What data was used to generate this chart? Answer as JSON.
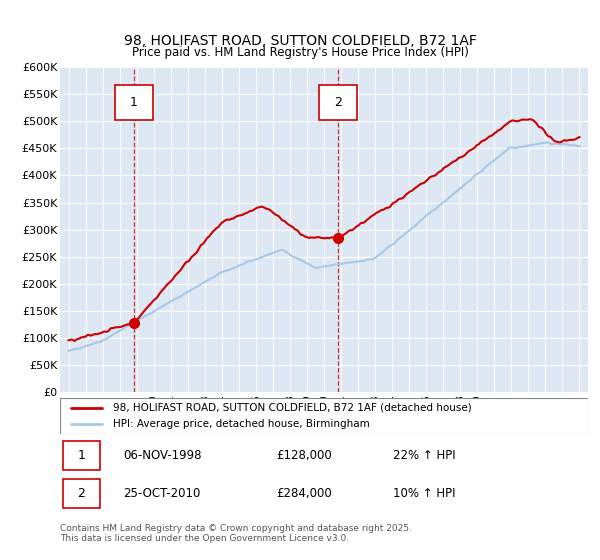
{
  "title_line1": "98, HOLIFAST ROAD, SUTTON COLDFIELD, B72 1AF",
  "title_line2": "Price paid vs. HM Land Registry's House Price Index (HPI)",
  "ylabel_ticks": [
    "£0",
    "£50K",
    "£100K",
    "£150K",
    "£200K",
    "£250K",
    "£300K",
    "£350K",
    "£400K",
    "£450K",
    "£500K",
    "£550K",
    "£600K"
  ],
  "ytick_values": [
    0,
    50000,
    100000,
    150000,
    200000,
    250000,
    300000,
    350000,
    400000,
    450000,
    500000,
    550000,
    600000
  ],
  "xlim": [
    1994.5,
    2025.5
  ],
  "ylim": [
    0,
    600000
  ],
  "hpi_color": "#a8c8e8",
  "price_color": "#cc0000",
  "sale1_date": 1998.85,
  "sale1_price": 128000,
  "sale2_date": 2010.82,
  "sale2_price": 284000,
  "legend_label1": "98, HOLIFAST ROAD, SUTTON COLDFIELD, B72 1AF (detached house)",
  "legend_label2": "HPI: Average price, detached house, Birmingham",
  "note1_date": "06-NOV-1998",
  "note1_price": "£128,000",
  "note1_hpi": "22% ↑ HPI",
  "note2_date": "25-OCT-2010",
  "note2_price": "£284,000",
  "note2_hpi": "10% ↑ HPI",
  "footer": "Contains HM Land Registry data © Crown copyright and database right 2025.\nThis data is licensed under the Open Government Licence v3.0.",
  "background_color": "#dde8f4",
  "grid_color": "#ffffff"
}
